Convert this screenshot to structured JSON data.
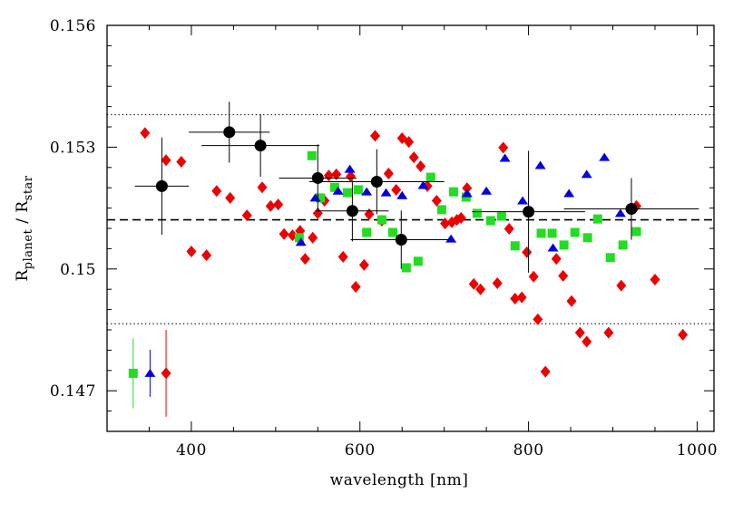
{
  "chart_data": {
    "type": "scatter",
    "xlabel": "wavelength [nm]",
    "ylabel": [
      "R",
      "planet",
      " / ",
      "R",
      "star"
    ],
    "xlim": [
      300,
      1020
    ],
    "ylim": [
      0.146,
      0.156
    ],
    "xticks": [
      400,
      600,
      800,
      1000
    ],
    "yticks": [
      0.147,
      0.15,
      0.153,
      0.156
    ],
    "xminorticks": [
      300,
      350,
      450,
      500,
      550,
      650,
      700,
      750,
      850,
      900,
      950
    ],
    "yminorticks": [
      0.1465,
      0.1475,
      0.148,
      0.1485,
      0.149,
      0.1495,
      0.1505,
      0.151,
      0.1515,
      0.152,
      0.1525,
      0.1535,
      0.154,
      0.1545,
      0.155,
      0.1555
    ],
    "hlines": [
      {
        "value": 0.15121,
        "style": "dashed"
      },
      {
        "value": 0.1538,
        "style": "dotted"
      },
      {
        "value": 0.14865,
        "style": "dotted"
      }
    ],
    "series": [
      {
        "marker": "diamond",
        "color": "#ee0000",
        "x": [
          345,
          370,
          388,
          400,
          418,
          430,
          446,
          466,
          484,
          494,
          503,
          510,
          520,
          529,
          535,
          544,
          550,
          558,
          563,
          572,
          580,
          589,
          595,
          605,
          611,
          618,
          626,
          634,
          643,
          650,
          658,
          664,
          672,
          680,
          691,
          701,
          709,
          715,
          720,
          727,
          735,
          743,
          763,
          770,
          777,
          784,
          792,
          798,
          806,
          811,
          820,
          833,
          841,
          851,
          861,
          869,
          895,
          910,
          928,
          950,
          983
        ],
        "values": [
          0.15335,
          0.15268,
          0.15264,
          0.15043,
          0.15034,
          0.15192,
          0.15175,
          0.15132,
          0.15201,
          0.15155,
          0.15159,
          0.15086,
          0.15083,
          0.15094,
          0.15025,
          0.15077,
          0.15137,
          0.15168,
          0.1523,
          0.15233,
          0.1503,
          0.15228,
          0.14956,
          0.1501,
          0.15135,
          0.15328,
          0.15119,
          0.15235,
          0.15195,
          0.15322,
          0.15313,
          0.15275,
          0.15253,
          0.15204,
          0.15168,
          0.15112,
          0.15115,
          0.15121,
          0.15126,
          0.15199,
          0.14963,
          0.1495,
          0.14965,
          0.15299,
          0.15099,
          0.14927,
          0.1493,
          0.15041,
          0.14981,
          0.14876,
          0.14747,
          0.15025,
          0.14983,
          0.14921,
          0.14843,
          0.14821,
          0.14843,
          0.14959,
          0.15155,
          0.14974,
          0.14838
        ]
      },
      {
        "marker": "square",
        "color": "#22dd22",
        "x": [
          543,
          528,
          553,
          570,
          585,
          598,
          608,
          626,
          639,
          655,
          669,
          684,
          697,
          711,
          726,
          739,
          755,
          768,
          784,
          815,
          828,
          842,
          855,
          870,
          882,
          897,
          912,
          928
        ],
        "values": [
          0.15279,
          0.15077,
          0.15175,
          0.15201,
          0.15188,
          0.15195,
          0.1509,
          0.15121,
          0.1509,
          0.15003,
          0.15019,
          0.15226,
          0.15146,
          0.1519,
          0.15177,
          0.15137,
          0.15119,
          0.1513,
          0.15057,
          0.15088,
          0.15088,
          0.15059,
          0.1509,
          0.15077,
          0.15123,
          0.15028,
          0.15059,
          0.15092
        ]
      },
      {
        "marker": "triangle",
        "color": "#0000dd",
        "x": [
          530,
          547,
          574,
          588,
          608,
          631,
          650,
          675,
          708,
          727,
          750,
          772,
          793,
          814,
          829,
          848,
          869,
          890,
          909
        ],
        "values": [
          0.15066,
          0.15175,
          0.15192,
          0.15246,
          0.1519,
          0.15188,
          0.15181,
          0.15206,
          0.15074,
          0.15186,
          0.15192,
          0.15273,
          0.15168,
          0.15255,
          0.15052,
          0.15186,
          0.15233,
          0.15275,
          0.15137
        ]
      },
      {
        "marker": "circle",
        "color": "#000000",
        "x": [
          365,
          445,
          482,
          550,
          591,
          620,
          649,
          800,
          922
        ],
        "xerr": [
          32,
          48,
          70,
          46,
          43,
          80,
          60,
          67,
          80
        ],
        "values": [
          0.15204,
          0.15337,
          0.15304,
          0.15224,
          0.15143,
          0.15215,
          0.15072,
          0.15141,
          0.15148
        ],
        "yerr": [
          0.0012,
          0.00075,
          0.00077,
          0.00083,
          0.00075,
          0.0008,
          0.00072,
          0.0015,
          0.00076
        ]
      },
      {
        "marker": "square",
        "color": "#22dd22",
        "x": [
          331
        ],
        "values": [
          0.14743
        ],
        "yerr": [
          0.00086
        ]
      },
      {
        "marker": "triangle",
        "color": "#0000dd",
        "x": [
          351
        ],
        "values": [
          0.14743
        ],
        "yerr": [
          0.00058
        ]
      },
      {
        "marker": "diamond",
        "color": "#ee0000",
        "x": [
          370
        ],
        "values": [
          0.14743
        ],
        "yerr": [
          0.00107
        ]
      }
    ]
  }
}
